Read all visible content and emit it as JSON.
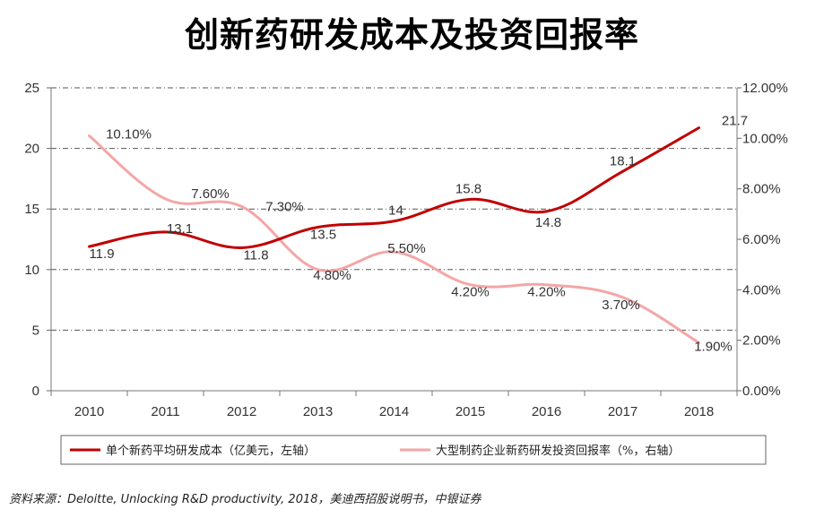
{
  "title": "创新药研发成本及投资回报率",
  "source": "资料来源：Deloitte, Unlocking R&D productivity, 2018，美迪西招股说明书，中银证券",
  "chart_data": {
    "type": "line",
    "categories": [
      "2010",
      "2011",
      "2012",
      "2013",
      "2014",
      "2015",
      "2016",
      "2017",
      "2018"
    ],
    "y_left": {
      "lim": [
        0,
        25
      ],
      "ticks": [
        "0",
        "5",
        "10",
        "15",
        "20",
        "25"
      ]
    },
    "y_right": {
      "lim": [
        0,
        12
      ],
      "ticks": [
        "0.00%",
        "2.00%",
        "4.00%",
        "6.00%",
        "8.00%",
        "10.00%",
        "12.00%"
      ]
    },
    "series": [
      {
        "name": "单个新药平均研发成本（亿美元，左轴）",
        "axis": "left",
        "color": "#c00000",
        "values": [
          11.9,
          13.1,
          11.8,
          13.5,
          14,
          15.8,
          14.8,
          18.1,
          21.7
        ],
        "labels": [
          "11.9",
          "13.1",
          "11.8",
          "13.5",
          "14",
          "15.8",
          "14.8",
          "18.1",
          "21.7"
        ]
      },
      {
        "name": "大型制药企业新药研发投资回报率（%，右轴）",
        "axis": "right",
        "color": "#f4a6a6",
        "values": [
          10.1,
          7.6,
          7.3,
          4.8,
          5.5,
          4.2,
          4.2,
          3.7,
          1.9
        ],
        "labels": [
          "10.10%",
          "7.60%",
          "7.30%",
          "4.80%",
          "5.50%",
          "4.20%",
          "4.20%",
          "3.70%",
          "1.90%"
        ]
      }
    ]
  }
}
